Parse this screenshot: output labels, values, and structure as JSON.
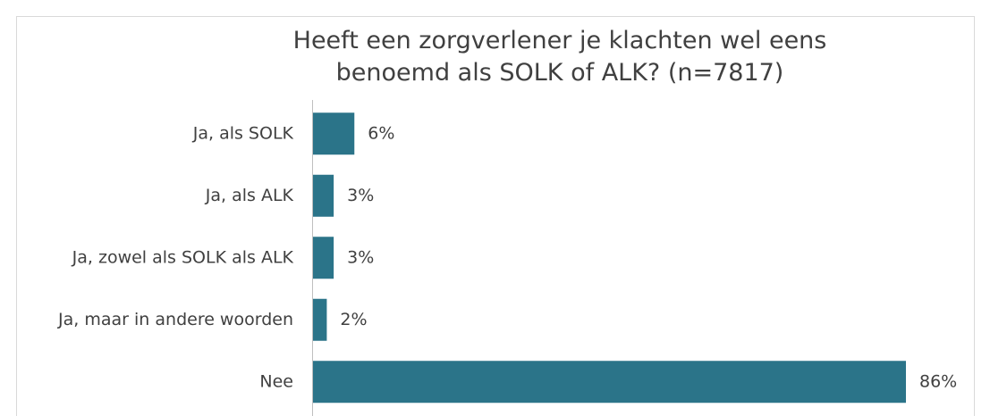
{
  "chart_data": {
    "type": "bar",
    "orientation": "horizontal",
    "title": "Heeft een zorgverlener je klachten wel eens benoemd als SOLK of ALK? (n=7817)",
    "categories": [
      "Ja, als SOLK",
      "Ja, als ALK",
      "Ja, zowel als SOLK als ALK",
      "Ja, maar in andere woorden",
      "Nee"
    ],
    "values": [
      6,
      3,
      3,
      2,
      86
    ],
    "value_labels": [
      "6%",
      "3%",
      "3%",
      "2%",
      "86%"
    ],
    "color": "#2b7489"
  }
}
